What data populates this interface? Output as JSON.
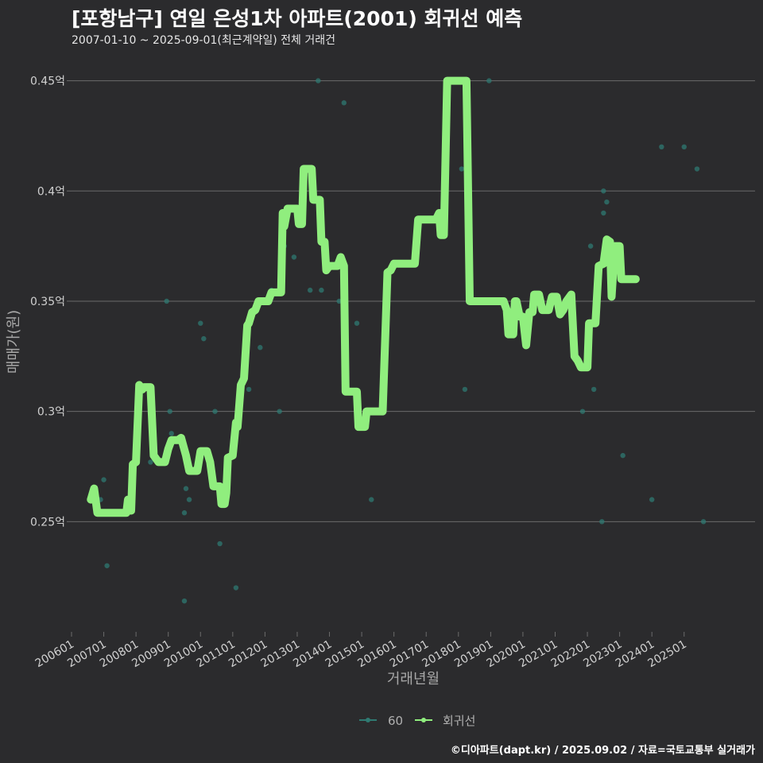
{
  "header": {
    "title": "[포항남구] 연일 은성1차 아파트(2001) 회귀선 예측",
    "subtitle": "2007-01-10 ~ 2025-09-01(최근계약일) 전체 거래건"
  },
  "footer": {
    "credit": "©디아파트(dapt.kr) / 2025.09.02 / 자료=국토교통부 실거래가"
  },
  "colors": {
    "background": "#2b2b2d",
    "grid": "#6b6b6b",
    "line": "#90ee7e",
    "points": "#2f7a72",
    "text": "#d0d0d0"
  },
  "chart_data": {
    "type": "line",
    "title": "[포항남구] 연일 은성1차 아파트(2001) 회귀선 예측",
    "xlabel": "거래년월",
    "ylabel": "매매가(원)",
    "xlim": [
      2006.0,
      2027.2
    ],
    "ylim": [
      0.2,
      0.465
    ],
    "x_ticks": [
      {
        "x": 2006.0,
        "label": "200601"
      },
      {
        "x": 2007.0,
        "label": "200701"
      },
      {
        "x": 2008.0,
        "label": "200801"
      },
      {
        "x": 2009.0,
        "label": "200901"
      },
      {
        "x": 2010.0,
        "label": "201001"
      },
      {
        "x": 2011.0,
        "label": "201101"
      },
      {
        "x": 2012.0,
        "label": "201201"
      },
      {
        "x": 2013.0,
        "label": "201301"
      },
      {
        "x": 2014.0,
        "label": "201401"
      },
      {
        "x": 2015.0,
        "label": "201501"
      },
      {
        "x": 2016.0,
        "label": "201601"
      },
      {
        "x": 2017.0,
        "label": "201701"
      },
      {
        "x": 2018.0,
        "label": "201801"
      },
      {
        "x": 2019.0,
        "label": "201901"
      },
      {
        "x": 2020.0,
        "label": "202001"
      },
      {
        "x": 2021.0,
        "label": "202101"
      },
      {
        "x": 2022.0,
        "label": "202201"
      },
      {
        "x": 2023.0,
        "label": "202301"
      },
      {
        "x": 2024.0,
        "label": "202401"
      },
      {
        "x": 2025.0,
        "label": "202501"
      }
    ],
    "y_ticks": [
      {
        "y": 0.25,
        "label": "0.25억"
      },
      {
        "y": 0.3,
        "label": "0.3억"
      },
      {
        "y": 0.35,
        "label": "0.35억"
      },
      {
        "y": 0.4,
        "label": "0.4억"
      },
      {
        "y": 0.45,
        "label": "0.45억"
      }
    ],
    "legend": {
      "position": "bottom",
      "entries": [
        {
          "name": "60",
          "kind": "points"
        },
        {
          "name": "회귀선",
          "kind": "line"
        }
      ]
    },
    "series": [
      {
        "name": "60",
        "kind": "points",
        "points": [
          [
            2006.9,
            0.26
          ],
          [
            2007.0,
            0.269
          ],
          [
            2007.1,
            0.23
          ],
          [
            2008.45,
            0.277
          ],
          [
            2008.95,
            0.35
          ],
          [
            2009.05,
            0.3
          ],
          [
            2009.1,
            0.29
          ],
          [
            2009.55,
            0.265
          ],
          [
            2009.5,
            0.254
          ],
          [
            2009.5,
            0.214
          ],
          [
            2009.65,
            0.26
          ],
          [
            2010.0,
            0.34
          ],
          [
            2010.1,
            0.333
          ],
          [
            2010.45,
            0.3
          ],
          [
            2010.6,
            0.24
          ],
          [
            2011.1,
            0.22
          ],
          [
            2011.5,
            0.31
          ],
          [
            2011.85,
            0.329
          ],
          [
            2012.2,
            0.355
          ],
          [
            2012.45,
            0.3
          ],
          [
            2012.55,
            0.37
          ],
          [
            2012.6,
            0.375
          ],
          [
            2012.9,
            0.37
          ],
          [
            2013.4,
            0.355
          ],
          [
            2013.65,
            0.45
          ],
          [
            2013.75,
            0.355
          ],
          [
            2014.3,
            0.35
          ],
          [
            2014.45,
            0.44
          ],
          [
            2014.85,
            0.34
          ],
          [
            2015.3,
            0.26
          ],
          [
            2018.1,
            0.41
          ],
          [
            2018.2,
            0.31
          ],
          [
            2018.95,
            0.45
          ],
          [
            2021.85,
            0.3
          ],
          [
            2022.1,
            0.375
          ],
          [
            2022.2,
            0.31
          ],
          [
            2022.45,
            0.25
          ],
          [
            2022.5,
            0.39
          ],
          [
            2022.5,
            0.4
          ],
          [
            2022.6,
            0.395
          ],
          [
            2023.1,
            0.28
          ],
          [
            2024.0,
            0.26
          ],
          [
            2024.3,
            0.42
          ],
          [
            2025.0,
            0.42
          ],
          [
            2025.4,
            0.41
          ],
          [
            2025.6,
            0.25
          ]
        ]
      },
      {
        "name": "회귀선",
        "kind": "line",
        "points": [
          [
            2006.6,
            0.26
          ],
          [
            2006.7,
            0.265
          ],
          [
            2006.8,
            0.254
          ],
          [
            2007.0,
            0.254
          ],
          [
            2007.5,
            0.254
          ],
          [
            2007.7,
            0.254
          ],
          [
            2007.75,
            0.26
          ],
          [
            2007.85,
            0.255
          ],
          [
            2007.9,
            0.276
          ],
          [
            2008.0,
            0.277
          ],
          [
            2008.1,
            0.312
          ],
          [
            2008.2,
            0.31
          ],
          [
            2008.25,
            0.311
          ],
          [
            2008.45,
            0.311
          ],
          [
            2008.55,
            0.28
          ],
          [
            2008.7,
            0.277
          ],
          [
            2008.9,
            0.277
          ],
          [
            2009.0,
            0.283
          ],
          [
            2009.1,
            0.287
          ],
          [
            2009.3,
            0.287
          ],
          [
            2009.4,
            0.288
          ],
          [
            2009.55,
            0.28
          ],
          [
            2009.65,
            0.273
          ],
          [
            2009.9,
            0.273
          ],
          [
            2010.0,
            0.282
          ],
          [
            2010.2,
            0.282
          ],
          [
            2010.3,
            0.277
          ],
          [
            2010.4,
            0.266
          ],
          [
            2010.6,
            0.266
          ],
          [
            2010.65,
            0.258
          ],
          [
            2010.75,
            0.258
          ],
          [
            2010.8,
            0.263
          ],
          [
            2010.85,
            0.279
          ],
          [
            2011.0,
            0.28
          ],
          [
            2011.1,
            0.295
          ],
          [
            2011.15,
            0.293
          ],
          [
            2011.25,
            0.312
          ],
          [
            2011.35,
            0.315
          ],
          [
            2011.45,
            0.339
          ],
          [
            2011.5,
            0.34
          ],
          [
            2011.6,
            0.345
          ],
          [
            2011.7,
            0.346
          ],
          [
            2011.8,
            0.35
          ],
          [
            2012.1,
            0.35
          ],
          [
            2012.2,
            0.354
          ],
          [
            2012.5,
            0.354
          ],
          [
            2012.55,
            0.39
          ],
          [
            2012.6,
            0.384
          ],
          [
            2012.7,
            0.392
          ],
          [
            2013.0,
            0.392
          ],
          [
            2013.05,
            0.385
          ],
          [
            2013.15,
            0.385
          ],
          [
            2013.2,
            0.41
          ],
          [
            2013.45,
            0.41
          ],
          [
            2013.5,
            0.396
          ],
          [
            2013.7,
            0.396
          ],
          [
            2013.75,
            0.377
          ],
          [
            2013.85,
            0.377
          ],
          [
            2013.9,
            0.364
          ],
          [
            2014.0,
            0.366
          ],
          [
            2014.25,
            0.366
          ],
          [
            2014.35,
            0.37
          ],
          [
            2014.45,
            0.366
          ],
          [
            2014.5,
            0.309
          ],
          [
            2014.85,
            0.309
          ],
          [
            2014.9,
            0.293
          ],
          [
            2015.1,
            0.293
          ],
          [
            2015.15,
            0.3
          ],
          [
            2015.65,
            0.3
          ],
          [
            2015.8,
            0.363
          ],
          [
            2015.9,
            0.364
          ],
          [
            2016.0,
            0.367
          ],
          [
            2016.65,
            0.367
          ],
          [
            2016.75,
            0.387
          ],
          [
            2017.3,
            0.387
          ],
          [
            2017.4,
            0.39
          ],
          [
            2017.45,
            0.38
          ],
          [
            2017.55,
            0.38
          ],
          [
            2017.65,
            0.45
          ],
          [
            2018.25,
            0.45
          ],
          [
            2018.35,
            0.35
          ],
          [
            2019.4,
            0.35
          ],
          [
            2019.5,
            0.346
          ],
          [
            2019.55,
            0.335
          ],
          [
            2019.7,
            0.335
          ],
          [
            2019.75,
            0.35
          ],
          [
            2019.8,
            0.35
          ],
          [
            2019.9,
            0.343
          ],
          [
            2020.0,
            0.343
          ],
          [
            2020.1,
            0.33
          ],
          [
            2020.2,
            0.345
          ],
          [
            2020.3,
            0.345
          ],
          [
            2020.35,
            0.353
          ],
          [
            2020.5,
            0.353
          ],
          [
            2020.6,
            0.346
          ],
          [
            2020.8,
            0.346
          ],
          [
            2020.9,
            0.352
          ],
          [
            2021.05,
            0.352
          ],
          [
            2021.15,
            0.344
          ],
          [
            2021.25,
            0.346
          ],
          [
            2021.35,
            0.35
          ],
          [
            2021.5,
            0.353
          ],
          [
            2021.6,
            0.325
          ],
          [
            2021.7,
            0.323
          ],
          [
            2021.8,
            0.32
          ],
          [
            2022.0,
            0.32
          ],
          [
            2022.05,
            0.34
          ],
          [
            2022.25,
            0.34
          ],
          [
            2022.35,
            0.366
          ],
          [
            2022.5,
            0.367
          ],
          [
            2022.6,
            0.378
          ],
          [
            2022.7,
            0.377
          ],
          [
            2022.75,
            0.352
          ],
          [
            2022.85,
            0.375
          ],
          [
            2023.0,
            0.375
          ],
          [
            2023.05,
            0.36
          ],
          [
            2023.2,
            0.36
          ],
          [
            2023.5,
            0.36
          ]
        ]
      }
    ]
  }
}
